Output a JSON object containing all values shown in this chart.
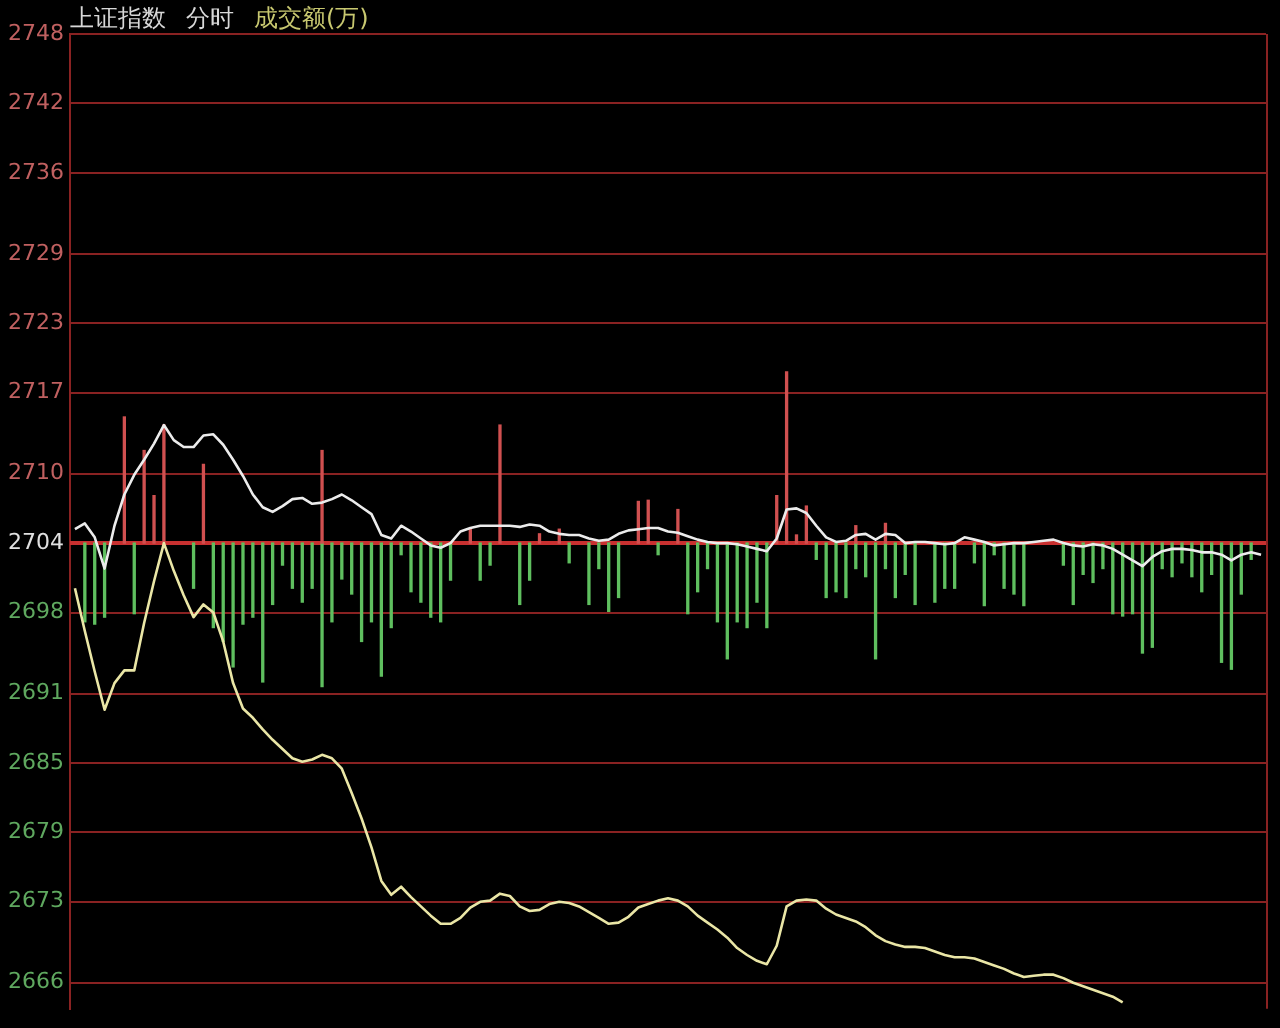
{
  "chart_data": {
    "type": "line",
    "title": "上证指数",
    "annotations": [
      "分时",
      "成交额(万)"
    ],
    "categories": [
      null,
      null,
      null,
      null,
      null,
      null,
      null,
      null,
      null,
      null,
      null,
      null,
      null,
      null,
      null,
      null,
      null,
      null,
      null,
      null,
      null,
      null,
      null,
      null,
      null,
      null,
      null,
      null,
      null,
      null,
      null,
      null,
      null,
      null,
      null,
      null,
      null,
      null,
      null,
      null,
      null,
      null,
      null,
      null,
      null,
      null,
      null,
      null,
      null,
      null,
      null,
      null,
      null,
      null,
      null,
      null,
      null,
      null,
      null,
      null,
      null,
      null,
      null,
      null,
      null,
      null,
      null,
      null,
      null,
      null,
      null,
      null,
      null,
      null,
      null,
      null,
      null,
      null,
      null,
      null,
      null,
      null,
      null,
      null,
      null,
      null,
      null,
      null,
      null,
      null,
      null,
      null,
      null,
      null,
      null,
      null,
      null,
      null,
      null,
      null,
      null,
      null,
      null,
      null,
      null,
      null,
      null,
      null,
      null,
      null,
      null,
      null,
      null,
      null,
      null,
      null,
      null,
      null,
      null,
      null,
      null
    ],
    "series": [
      {
        "type": "bar",
        "color": "#d05050",
        "base": [
          null,
          null,
          null,
          null,
          null,
          2704,
          null,
          2704,
          2704,
          2704,
          null,
          null,
          null,
          2704,
          null,
          null,
          null,
          null,
          null,
          null,
          null,
          null,
          null,
          null,
          null,
          2704,
          null,
          null,
          null,
          null,
          null,
          null,
          null,
          null,
          null,
          null,
          null,
          null,
          null,
          null,
          2704,
          null,
          null,
          2704,
          null,
          null,
          null,
          2704,
          null,
          2704,
          null,
          null,
          null,
          null,
          null,
          null,
          null,
          2704,
          2704,
          null,
          null,
          2704,
          null,
          null,
          null,
          null,
          null,
          null,
          null,
          null,
          null,
          2704,
          2704,
          2704,
          2704,
          null,
          null,
          null,
          null,
          2704,
          null,
          null,
          2704,
          null,
          null,
          null,
          null,
          null,
          null,
          null,
          null,
          null,
          null,
          null,
          null,
          null,
          null,
          null,
          null,
          null,
          null,
          null,
          null,
          null,
          null,
          null,
          null,
          null,
          null,
          null,
          null,
          null,
          null,
          null,
          null,
          null,
          null,
          null,
          null,
          null,
          null
        ],
        "values": [
          null,
          null,
          null,
          null,
          null,
          10.9,
          null,
          8.0,
          4.1,
          10.2,
          null,
          null,
          null,
          6.8,
          null,
          null,
          null,
          null,
          null,
          null,
          null,
          null,
          null,
          null,
          null,
          8.0,
          null,
          null,
          null,
          null,
          null,
          null,
          null,
          null,
          null,
          null,
          null,
          null,
          null,
          null,
          1.2,
          null,
          null,
          10.2,
          null,
          null,
          null,
          0.8,
          null,
          1.2,
          null,
          null,
          null,
          null,
          null,
          null,
          null,
          3.6,
          3.7,
          null,
          null,
          2.9,
          null,
          null,
          null,
          null,
          null,
          null,
          null,
          null,
          null,
          4.1,
          14.8,
          0.7,
          3.2,
          null,
          null,
          null,
          null,
          1.5,
          null,
          null,
          1.7,
          null,
          null,
          null,
          null,
          null,
          null,
          null,
          null,
          null,
          null,
          null,
          null,
          null,
          null,
          null,
          null,
          null,
          null,
          null,
          null,
          null,
          null,
          null,
          null,
          null,
          null,
          null,
          null,
          null,
          null,
          null,
          null,
          null,
          null,
          null,
          null,
          null,
          null
        ]
      },
      {
        "type": "bar",
        "color": "#5fbf5f",
        "base": [
          null,
          2704,
          2704,
          2704,
          null,
          null,
          2704,
          null,
          null,
          null,
          null,
          null,
          2704,
          null,
          2704,
          2704,
          2704,
          2704,
          2704,
          2704,
          2704,
          2704,
          2704,
          2704,
          2704,
          2704,
          2704,
          2704,
          2704,
          2704,
          2704,
          2704,
          2704,
          2704,
          2704,
          2704,
          2704,
          2704,
          2704,
          null,
          null,
          2704,
          2704,
          null,
          null,
          2704,
          2704,
          null,
          null,
          null,
          2704,
          null,
          2704,
          2704,
          2704,
          2704,
          null,
          null,
          null,
          2704,
          null,
          null,
          2704,
          2704,
          2704,
          2704,
          2704,
          2704,
          2704,
          2704,
          2704,
          null,
          null,
          null,
          null,
          2704,
          2704,
          2704,
          2704,
          2704,
          2704,
          2704,
          2704,
          2704,
          2704,
          2704,
          null,
          2704,
          2704,
          2704,
          null,
          2704,
          2704,
          2704,
          2704,
          2704,
          2704,
          null,
          null,
          null,
          2704,
          2704,
          2704,
          2704,
          2704,
          2704,
          2704,
          2704,
          2704,
          2704,
          2704,
          2704,
          2704,
          2704,
          2704,
          2704,
          2704,
          2704,
          2704,
          2704,
          null
        ],
        "values": [
          null,
          -6.8,
          -7.0,
          -6.4,
          null,
          null,
          -6.1,
          null,
          null,
          null,
          null,
          null,
          -3.9,
          null,
          -7.3,
          -8.5,
          -10.7,
          -7.0,
          -6.4,
          -12.0,
          -5.3,
          -1.9,
          -3.9,
          -5.1,
          -3.9,
          -12.4,
          -6.8,
          -3.1,
          -4.4,
          -8.5,
          -6.8,
          -11.5,
          -7.3,
          -1.0,
          -4.2,
          -5.1,
          -6.4,
          -6.8,
          -3.2,
          null,
          null,
          -3.2,
          -1.9,
          null,
          null,
          -5.3,
          -3.2,
          null,
          null,
          null,
          -1.7,
          null,
          -5.3,
          -2.2,
          -5.9,
          -4.7,
          null,
          null,
          null,
          -1.0,
          null,
          null,
          -6.1,
          -4.2,
          -2.2,
          -6.8,
          -10.0,
          -6.8,
          -7.3,
          -5.1,
          -7.3,
          null,
          null,
          null,
          null,
          -1.4,
          -4.7,
          -4.2,
          -4.7,
          -2.2,
          -2.9,
          -10.0,
          -2.2,
          -4.7,
          -2.7,
          -5.3,
          null,
          -5.1,
          -3.9,
          -3.9,
          null,
          -1.7,
          -5.4,
          -1.0,
          -3.9,
          -4.4,
          -5.4,
          null,
          null,
          null,
          -1.9,
          -5.3,
          -2.7,
          -3.4,
          -2.2,
          -6.1,
          -6.3,
          -6.1,
          -9.5,
          -9.0,
          -2.2,
          -2.9,
          -1.7,
          -2.9,
          -4.2,
          -2.7,
          -10.3,
          -10.9,
          -4.4,
          -1.4,
          null
        ]
      },
      {
        "color": "#ececec",
        "values": [
          2705.2,
          2705.7,
          2704.5,
          2701.8,
          2705.5,
          2708.2,
          2709.9,
          2711.2,
          2712.6,
          2714.2,
          2712.9,
          2712.3,
          2712.3,
          2713.3,
          2713.4,
          2712.5,
          2711.2,
          2709.8,
          2708.2,
          2707.1,
          2706.7,
          2707.2,
          2707.8,
          2707.9,
          2707.4,
          2707.5,
          2707.8,
          2708.2,
          2707.7,
          2707.1,
          2706.5,
          2704.7,
          2704.4,
          2705.5,
          2705.0,
          2704.4,
          2703.8,
          2703.6,
          2704.0,
          2705.0,
          2705.3,
          2705.5,
          2705.5,
          2705.5,
          2705.5,
          2705.4,
          2705.6,
          2705.5,
          2705.0,
          2704.8,
          2704.7,
          2704.7,
          2704.4,
          2704.2,
          2704.3,
          2704.8,
          2705.1,
          2705.2,
          2705.3,
          2705.3,
          2705.0,
          2704.9,
          2704.6,
          2704.3,
          2704.1,
          2704.0,
          2704.0,
          2703.9,
          2703.7,
          2703.5,
          2703.3,
          2704.4,
          2706.9,
          2707.0,
          2706.6,
          2705.5,
          2704.5,
          2704.1,
          2704.2,
          2704.7,
          2704.8,
          2704.3,
          2704.8,
          2704.7,
          2704.0,
          2704.1,
          2704.1,
          2704.0,
          2703.9,
          2704.0,
          2704.5,
          2704.3,
          2704.1,
          2703.8,
          2703.9,
          2704.0,
          2704.0,
          2704.1,
          2704.2,
          2704.3,
          2704.0,
          2703.8,
          2703.7,
          2703.9,
          2703.8,
          2703.5,
          2703.0,
          2702.5,
          2702.0,
          2702.8,
          2703.3,
          2703.5,
          2703.5,
          2703.4,
          2703.2,
          2703.2,
          2703.0,
          2702.5,
          2703.0,
          2703.2,
          2703.0
        ]
      },
      {
        "color": "#eae6a6",
        "values": [
          2700.1,
          2696.4,
          2692.9,
          2689.6,
          2691.9,
          2693.0,
          2693.0,
          2697.1,
          2700.7,
          2704.0,
          2701.6,
          2699.5,
          2697.6,
          2698.7,
          2698.0,
          2695.5,
          2691.9,
          2689.7,
          2688.9,
          2687.9,
          2687.0,
          2686.2,
          2685.4,
          2685.1,
          2685.3,
          2685.7,
          2685.4,
          2684.5,
          2682.4,
          2680.2,
          2677.7,
          2674.8,
          2673.6,
          2674.3,
          2673.4,
          2672.6,
          2671.8,
          2671.1,
          2671.1,
          2671.6,
          2672.5,
          2673.0,
          2673.1,
          2673.7,
          2673.5,
          2672.6,
          2672.2,
          2672.3,
          2672.8,
          2673.0,
          2672.9,
          2672.6,
          2672.1,
          2671.6,
          2671.1,
          2671.2,
          2671.7,
          2672.5,
          2672.8,
          2673.1,
          2673.3,
          2673.1,
          2672.6,
          2671.8,
          2671.2,
          2670.6,
          2669.9,
          2669.0,
          2668.4,
          2667.9,
          2667.6,
          2669.2,
          2672.6,
          2673.1,
          2673.2,
          2673.1,
          2672.4,
          2671.9,
          2671.6,
          2671.3,
          2670.8,
          2670.1,
          2669.6,
          2669.3,
          2669.1,
          2669.1,
          2669.0,
          2668.7,
          2668.4,
          2668.2,
          2668.2,
          2668.1,
          2667.8,
          2667.5,
          2667.2,
          2666.8,
          2666.5,
          2666.6,
          2666.7,
          2666.7,
          2666.4,
          2666.0,
          2665.7,
          2665.4,
          2665.1,
          2664.8,
          2664.3,
          null,
          null,
          null,
          null,
          null,
          null,
          null,
          null,
          null,
          null,
          null,
          null,
          null,
          null
        ]
      }
    ],
    "ylim": [
      2663.75,
      2748
    ],
    "yticks": [
      2666,
      2673,
      2679,
      2685,
      2691,
      2698,
      2704,
      2710,
      2717,
      2723,
      2729,
      2736,
      2742,
      2748
    ],
    "ref_lines": [
      {
        "axis": "y",
        "value": 2704,
        "color": "#c83030"
      }
    ],
    "grid": "y",
    "tick_labels": "y",
    "marker": "none",
    "line_style": "solid"
  }
}
